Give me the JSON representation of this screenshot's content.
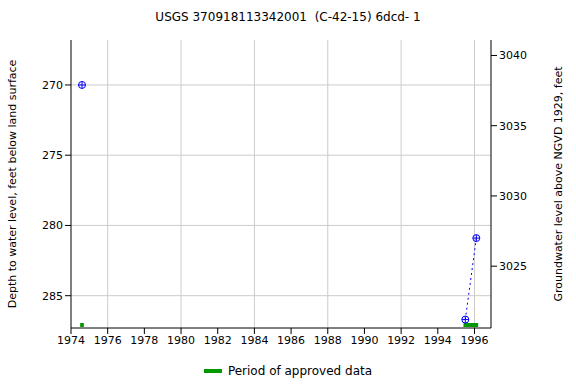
{
  "chart_data": {
    "type": "line",
    "title": "USGS 370918113342001  (C-42-15) 6dcd- 1",
    "x": [
      1974.6,
      1985.0,
      1995.5,
      1996.1
    ],
    "values": [
      270,
      null,
      286.7,
      280.9
    ],
    "color": "#0000ff",
    "marker": "circle",
    "line_style": "dotted",
    "xlim": [
      1974,
      1996.9
    ],
    "xticks": [
      1974,
      1976,
      1978,
      1980,
      1982,
      1984,
      1986,
      1988,
      1990,
      1992,
      1994,
      1996
    ],
    "ylim": [
      266.8,
      287.3
    ],
    "yticks": [
      270,
      275,
      280,
      285
    ],
    "y2lim": [
      3020.6,
      3041.1
    ],
    "y2ticks": [
      3025,
      3030,
      3035,
      3040
    ],
    "y_label": "Depth to water level, feet below land surface",
    "y2_label": "Groundwater level above NGVD 1929, feet",
    "grid": true,
    "legend": "bottom",
    "approved": {
      "name": "Period of approved data",
      "color": "#009900",
      "ranges": [
        [
          1974.5,
          1974.7
        ],
        [
          1995.4,
          1996.2
        ]
      ]
    }
  }
}
